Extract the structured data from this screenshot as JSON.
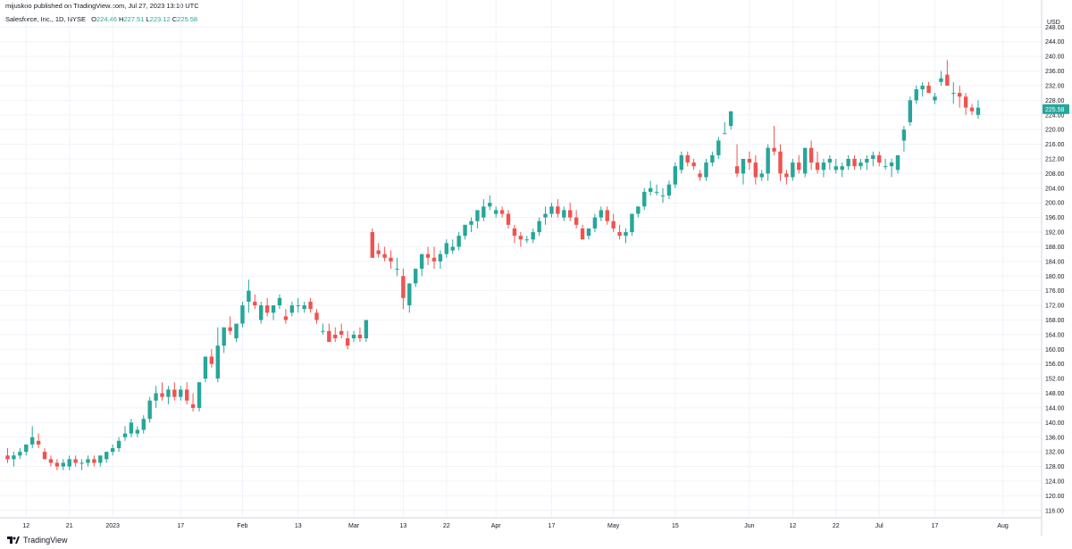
{
  "header": {
    "publisher_line": "mijuskoo published on TradingView.com, Jul 27, 2023 13:10 UTC",
    "symbol": "Salesforce, Inc., 1D, NYSE",
    "ohlc": [
      {
        "label": "O",
        "value": "224.46"
      },
      {
        "label": "H",
        "value": "227.51"
      },
      {
        "label": "L",
        "value": "223.12"
      },
      {
        "label": "C",
        "value": "225.58"
      }
    ]
  },
  "footer": {
    "brand": "TradingView"
  },
  "colors": {
    "up": "#26a69a",
    "down": "#ef5350",
    "grid": "#f0f3fa",
    "text": "#131722"
  },
  "chart_data": {
    "type": "candlestick",
    "currency_label": "USD",
    "last_price_label": "225.58",
    "y_ticks": [
      "116.00",
      "120.00",
      "124.00",
      "128.00",
      "132.00",
      "136.00",
      "140.00",
      "144.00",
      "148.00",
      "152.00",
      "156.00",
      "160.00",
      "164.00",
      "168.00",
      "172.00",
      "176.00",
      "180.00",
      "184.00",
      "188.00",
      "192.00",
      "196.00",
      "200.00",
      "204.00",
      "208.00",
      "212.00",
      "216.00",
      "220.00",
      "224.00",
      "228.00",
      "232.00",
      "236.00",
      "240.00",
      "244.00",
      "248.00"
    ],
    "ylim": [
      114,
      251
    ],
    "x_ticks": [
      {
        "label": "12",
        "index": 3
      },
      {
        "label": "21",
        "index": 10
      },
      {
        "label": "2023",
        "index": 17
      },
      {
        "label": "17",
        "index": 28
      },
      {
        "label": "Feb",
        "index": 38
      },
      {
        "label": "13",
        "index": 47
      },
      {
        "label": "Mar",
        "index": 56
      },
      {
        "label": "13",
        "index": 64
      },
      {
        "label": "22",
        "index": 71
      },
      {
        "label": "Apr",
        "index": 79
      },
      {
        "label": "17",
        "index": 88
      },
      {
        "label": "May",
        "index": 98
      },
      {
        "label": "15",
        "index": 108
      },
      {
        "label": "Jun",
        "index": 120
      },
      {
        "label": "12",
        "index": 127
      },
      {
        "label": "22",
        "index": 134
      },
      {
        "label": "Jul",
        "index": 141
      },
      {
        "label": "17",
        "index": 150
      },
      {
        "label": "Aug",
        "index": 161
      }
    ],
    "candles": [
      [
        131,
        133,
        129,
        130
      ],
      [
        130,
        132,
        128,
        131
      ],
      [
        131,
        133,
        130,
        132
      ],
      [
        132,
        134,
        131,
        134
      ],
      [
        134,
        139,
        133,
        136
      ],
      [
        135,
        137,
        133,
        134
      ],
      [
        132,
        133,
        130,
        130
      ],
      [
        130,
        131,
        128,
        129
      ],
      [
        129,
        130,
        127,
        128
      ],
      [
        128,
        130,
        127,
        129
      ],
      [
        128,
        131,
        127,
        130
      ],
      [
        130,
        131,
        128,
        129
      ],
      [
        129,
        130,
        127,
        129
      ],
      [
        129,
        131,
        128,
        130
      ],
      [
        130,
        131,
        128,
        129
      ],
      [
        129,
        131,
        128,
        131
      ],
      [
        130,
        132,
        129,
        132
      ],
      [
        132,
        134,
        131,
        133
      ],
      [
        133,
        136,
        132,
        135
      ],
      [
        136,
        139,
        135,
        137
      ],
      [
        137,
        141,
        136,
        140
      ],
      [
        137,
        139,
        136,
        138
      ],
      [
        138,
        142,
        137,
        141
      ],
      [
        141,
        147,
        140,
        146
      ],
      [
        146,
        150,
        144,
        148
      ],
      [
        148,
        151,
        146,
        147
      ],
      [
        147,
        150,
        145,
        149
      ],
      [
        149,
        151,
        146,
        147
      ],
      [
        147,
        150,
        146,
        149
      ],
      [
        149,
        151,
        145,
        146
      ],
      [
        145,
        148,
        143,
        144
      ],
      [
        144,
        151,
        143,
        151
      ],
      [
        152,
        158,
        151,
        158
      ],
      [
        158,
        160,
        155,
        156
      ],
      [
        152,
        166,
        151,
        161
      ],
      [
        161,
        166,
        159,
        166
      ],
      [
        166,
        169,
        164,
        165
      ],
      [
        163,
        167,
        162,
        167
      ],
      [
        167,
        173,
        166,
        172
      ],
      [
        173,
        179,
        170,
        176
      ],
      [
        173,
        175,
        171,
        172
      ],
      [
        168,
        173,
        167,
        172
      ],
      [
        172,
        174,
        169,
        170
      ],
      [
        170,
        172,
        168,
        172
      ],
      [
        172,
        175,
        171,
        174
      ],
      [
        169,
        171,
        167,
        168
      ],
      [
        170,
        173,
        169,
        172
      ],
      [
        172,
        174,
        170,
        172
      ],
      [
        171,
        173,
        170,
        172
      ],
      [
        173,
        174,
        170,
        171
      ],
      [
        170,
        171,
        167,
        168
      ],
      [
        165,
        167,
        164,
        165
      ],
      [
        165,
        167,
        163,
        162
      ],
      [
        164,
        166,
        162,
        163
      ],
      [
        165,
        167,
        163,
        164
      ],
      [
        163,
        165,
        160,
        161
      ],
      [
        163,
        165,
        162,
        164
      ],
      [
        164,
        166,
        162,
        163
      ],
      [
        163,
        168,
        162,
        168
      ],
      [
        192,
        193,
        185,
        185
      ],
      [
        187,
        189,
        185,
        186
      ],
      [
        186,
        188,
        184,
        185
      ],
      [
        185,
        187,
        182,
        184
      ],
      [
        182,
        185,
        180,
        182
      ],
      [
        180,
        182,
        171,
        174
      ],
      [
        172,
        178,
        170,
        178
      ],
      [
        178,
        182,
        177,
        182
      ],
      [
        182,
        186,
        180,
        186
      ],
      [
        186,
        188,
        183,
        185
      ],
      [
        185,
        188,
        182,
        184
      ],
      [
        184,
        187,
        182,
        186
      ],
      [
        186,
        190,
        185,
        189
      ],
      [
        187,
        190,
        186,
        188
      ],
      [
        188,
        192,
        187,
        191
      ],
      [
        191,
        194,
        190,
        194
      ],
      [
        194,
        196,
        192,
        195
      ],
      [
        195,
        198,
        193,
        198
      ],
      [
        196,
        201,
        195,
        199
      ],
      [
        199,
        202,
        198,
        200
      ],
      [
        197,
        199,
        196,
        198
      ],
      [
        198,
        199,
        196,
        197
      ],
      [
        197,
        198,
        193,
        194
      ],
      [
        193,
        194,
        189,
        191
      ],
      [
        191,
        192,
        188,
        190
      ],
      [
        190,
        191,
        189,
        190
      ],
      [
        190,
        193,
        189,
        192
      ],
      [
        192,
        196,
        191,
        195
      ],
      [
        196,
        199,
        194,
        197
      ],
      [
        197,
        200,
        196,
        199
      ],
      [
        199,
        201,
        196,
        197
      ],
      [
        196,
        199,
        195,
        198
      ],
      [
        198,
        200,
        195,
        196
      ],
      [
        196,
        198,
        193,
        194
      ],
      [
        193,
        194,
        190,
        190
      ],
      [
        191,
        193,
        190,
        193
      ],
      [
        193,
        197,
        192,
        196
      ],
      [
        196,
        199,
        195,
        198
      ],
      [
        198,
        199,
        194,
        195
      ],
      [
        195,
        197,
        192,
        193
      ],
      [
        192,
        194,
        190,
        191
      ],
      [
        191,
        193,
        189,
        192
      ],
      [
        192,
        197,
        191,
        197
      ],
      [
        197,
        199,
        196,
        199
      ],
      [
        199,
        204,
        198,
        203
      ],
      [
        203,
        206,
        202,
        204
      ],
      [
        203,
        205,
        202,
        203
      ],
      [
        202,
        204,
        200,
        202
      ],
      [
        202,
        206,
        201,
        205
      ],
      [
        205,
        211,
        204,
        210
      ],
      [
        209,
        214,
        208,
        213
      ],
      [
        213,
        214,
        210,
        211
      ],
      [
        211,
        212,
        209,
        210
      ],
      [
        208,
        209,
        206,
        207
      ],
      [
        207,
        212,
        206,
        211
      ],
      [
        211,
        214,
        210,
        213
      ],
      [
        213,
        218,
        212,
        217
      ],
      [
        219,
        222,
        219,
        219
      ],
      [
        221,
        225,
        220,
        225
      ],
      [
        210,
        216,
        207,
        208
      ],
      [
        208,
        212,
        205,
        212
      ],
      [
        212,
        214,
        209,
        211
      ],
      [
        211,
        213,
        205,
        207
      ],
      [
        207,
        209,
        206,
        208
      ],
      [
        208,
        216,
        206,
        215
      ],
      [
        215,
        221,
        213,
        214
      ],
      [
        214,
        216,
        206,
        208
      ],
      [
        208,
        209,
        205,
        207
      ],
      [
        207,
        212,
        206,
        211
      ],
      [
        211,
        213,
        208,
        209
      ],
      [
        208,
        215,
        207,
        215
      ],
      [
        215,
        217,
        209,
        211
      ],
      [
        211,
        214,
        208,
        209
      ],
      [
        209,
        212,
        207,
        211
      ],
      [
        211,
        213,
        209,
        212
      ],
      [
        209,
        212,
        208,
        210
      ],
      [
        209,
        211,
        207,
        210
      ],
      [
        210,
        213,
        209,
        212
      ],
      [
        212,
        213,
        209,
        210
      ],
      [
        210,
        212,
        209,
        211
      ],
      [
        211,
        213,
        209,
        212
      ],
      [
        212,
        214,
        210,
        213
      ],
      [
        213,
        214,
        210,
        211
      ],
      [
        210,
        212,
        209,
        210
      ],
      [
        210,
        212,
        207,
        211
      ],
      [
        209,
        213,
        208,
        213
      ],
      [
        217,
        221,
        214,
        220
      ],
      [
        222,
        229,
        221,
        228
      ],
      [
        228,
        232,
        227,
        231
      ],
      [
        231,
        233,
        229,
        232
      ],
      [
        232,
        233,
        230,
        230
      ],
      [
        228,
        230,
        227,
        229
      ],
      [
        233,
        236,
        232,
        234
      ],
      [
        235,
        239,
        233,
        232
      ],
      [
        230,
        233,
        227,
        230
      ],
      [
        230,
        232,
        226,
        229
      ],
      [
        229,
        230,
        224,
        226
      ],
      [
        226,
        227,
        224,
        225
      ],
      [
        224,
        228,
        223,
        226
      ]
    ]
  }
}
